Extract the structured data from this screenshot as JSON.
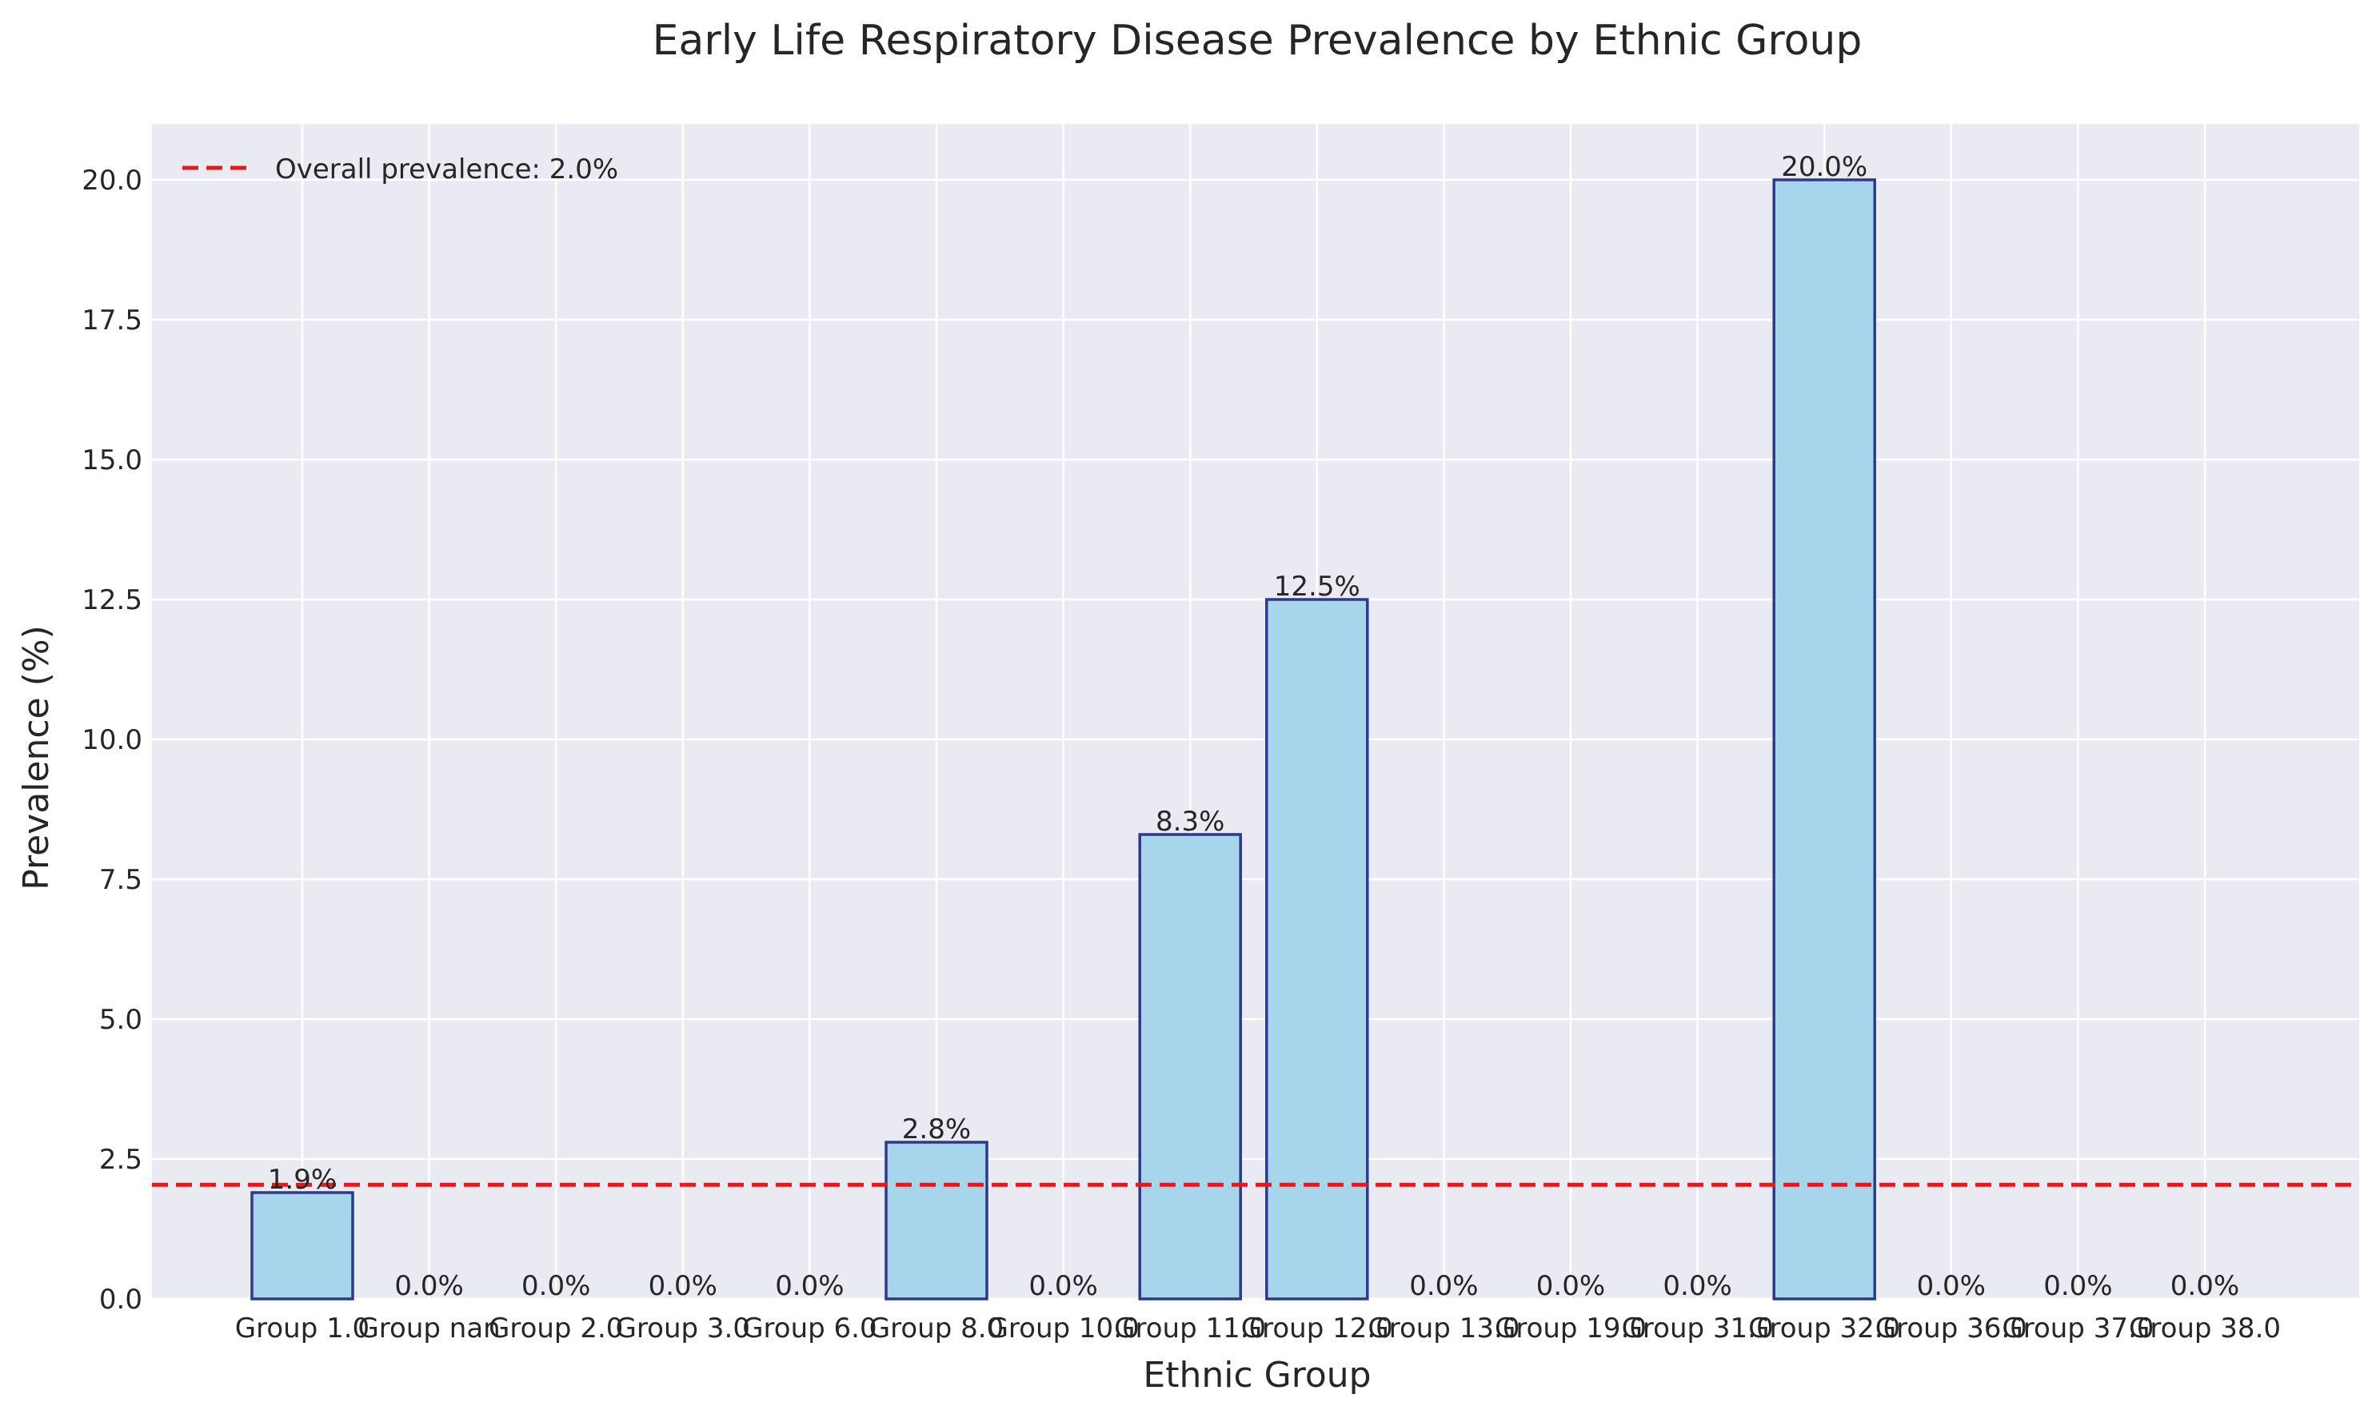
{
  "chart_data": {
    "type": "bar",
    "title": "Early Life Respiratory Disease Prevalence by Ethnic Group",
    "xlabel": "Ethnic Group",
    "ylabel": "Prevalence (%)",
    "categories": [
      "Group 1.0",
      "Group nan",
      "Group 2.0",
      "Group 3.0",
      "Group 6.0",
      "Group 8.0",
      "Group 10.0",
      "Group 11.0",
      "Group 12.0",
      "Group 13.0",
      "Group 19.0",
      "Group 31.0",
      "Group 32.0",
      "Group 36.0",
      "Group 37.0",
      "Group 38.0"
    ],
    "values": [
      1.9,
      0.0,
      0.0,
      0.0,
      0.0,
      2.8,
      0.0,
      8.3,
      12.5,
      0.0,
      0.0,
      0.0,
      20.0,
      0.0,
      0.0,
      0.0
    ],
    "value_labels": [
      "1.9%",
      "0.0%",
      "0.0%",
      "0.0%",
      "0.0%",
      "2.8%",
      "0.0%",
      "8.3%",
      "12.5%",
      "0.0%",
      "0.0%",
      "0.0%",
      "20.0%",
      "0.0%",
      "0.0%",
      "0.0%"
    ],
    "ylim": [
      0,
      21
    ],
    "yticks": [
      0.0,
      2.5,
      5.0,
      7.5,
      10.0,
      12.5,
      15.0,
      17.5,
      20.0
    ],
    "ytick_labels": [
      "0.0",
      "2.5",
      "5.0",
      "7.5",
      "10.0",
      "12.5",
      "15.0",
      "17.5",
      "20.0"
    ],
    "reference_line": {
      "value": 2.04,
      "label": "Overall prevalence: 2.0%",
      "style": "dashed",
      "color": "#e31a1c"
    },
    "legend_placement": "top-left",
    "grid": true,
    "colors": {
      "bar_fill": "#a6d5ec",
      "bar_edge": "#2d3a8c",
      "plot_bg": "#eaeaf2",
      "grid": "#ffffff"
    }
  }
}
